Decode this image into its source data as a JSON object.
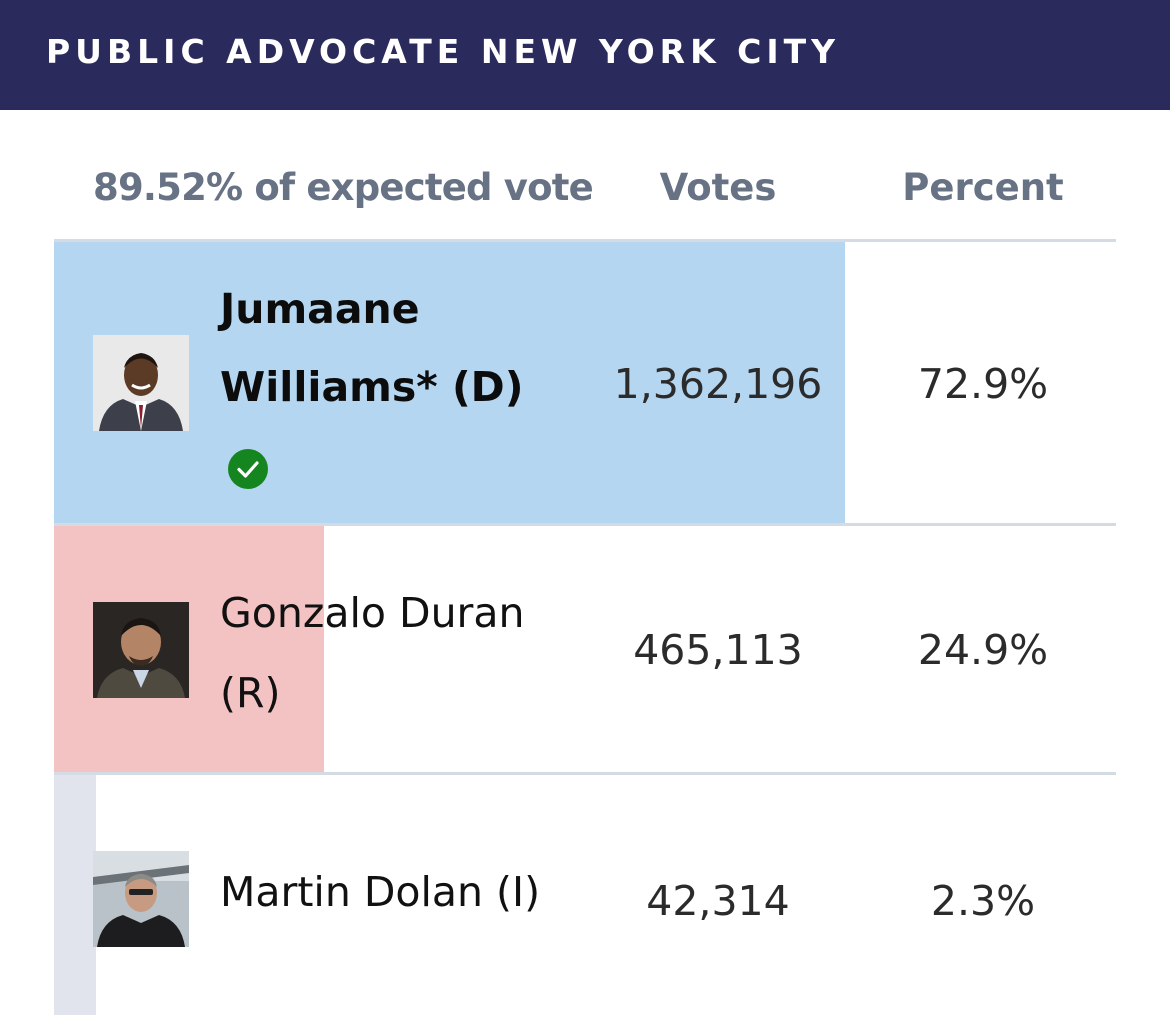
{
  "header": {
    "title": "PUBLIC ADVOCATE NEW YORK CITY"
  },
  "table": {
    "expected_vote_label": "89.52% of expected vote",
    "votes_header": "Votes",
    "percent_header": "Percent"
  },
  "colors": {
    "header_bg": "#2b2a5c",
    "democrat": "#b4d6f1",
    "republican": "#f3c2c2",
    "independent": "#e1e4ec",
    "winner_check": "#15861f"
  },
  "candidates": [
    {
      "name_line1": "Jumaane",
      "name_line2": "Williams* (D)",
      "votes": "1,362,196",
      "percent": "72.9%",
      "percent_value": 72.9,
      "winner": true,
      "icon": "check-circle-icon"
    },
    {
      "name_line1": "Gonzalo Duran",
      "name_line2": "(R)",
      "votes": "465,113",
      "percent": "24.9%",
      "percent_value": 24.9,
      "winner": false
    },
    {
      "name_line1": "Martin Dolan (I)",
      "votes": "42,314",
      "percent": "2.3%",
      "percent_value": 2.3,
      "winner": false
    }
  ]
}
